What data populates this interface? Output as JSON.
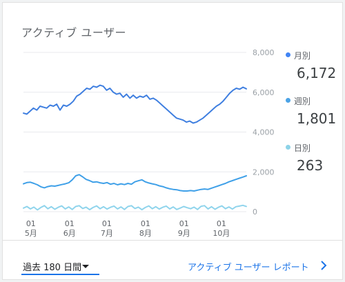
{
  "card": {
    "title": "アクティブ ユーザー"
  },
  "legend": [
    {
      "label": "月別",
      "value": "6,172",
      "color": "#4285f4"
    },
    {
      "label": "週別",
      "value": "1,801",
      "color": "#4ba3e6"
    },
    {
      "label": "日別",
      "value": "263",
      "color": "#8dd3e8"
    }
  ],
  "footer": {
    "range_label": "過去 180 日間",
    "report_link": "アクティブ ユーザー レポート"
  },
  "colors": {
    "monthly": "#3f7fe0",
    "weekly": "#3fa0e8",
    "daily": "#8fd4ec",
    "grid": "#e8eaed",
    "accent": "#1a73e8"
  },
  "chart_data": {
    "type": "line",
    "y_axis_position": "right",
    "ylim": [
      0,
      8000
    ],
    "y_ticks": [
      0,
      2000,
      4000,
      6000,
      8000
    ],
    "y_tick_labels": [
      "0",
      "2,000",
      "4,000",
      "6,000",
      "8,000"
    ],
    "x_tick_labels": [
      [
        "01",
        "5月"
      ],
      [
        "01",
        "6月"
      ],
      [
        "01",
        "7月"
      ],
      [
        "01",
        "8月"
      ],
      [
        "01",
        "9月"
      ],
      [
        "01",
        "10月"
      ]
    ],
    "x_tick_days": [
      6,
      37,
      67,
      98,
      129,
      159
    ],
    "num_days": 180,
    "series": [
      {
        "name": "月別",
        "values": [
          4950,
          4900,
          5050,
          5200,
          5100,
          5300,
          5250,
          5200,
          5350,
          5300,
          5400,
          5100,
          5350,
          5300,
          5400,
          5550,
          5800,
          5900,
          6050,
          6200,
          6150,
          6300,
          6250,
          6350,
          6300,
          6100,
          6200,
          6000,
          5900,
          5950,
          5750,
          5900,
          5700,
          5850,
          5700,
          5800,
          5750,
          5850,
          5650,
          5700,
          5600,
          5450,
          5300,
          5150,
          5000,
          4850,
          4700,
          4650,
          4600,
          4500,
          4550,
          4450,
          4500,
          4600,
          4700,
          4850,
          5000,
          5150,
          5300,
          5400,
          5550,
          5750,
          5950,
          6100,
          6200,
          6150,
          6250,
          6172
        ]
      },
      {
        "name": "週別",
        "values": [
          1400,
          1460,
          1480,
          1420,
          1350,
          1250,
          1200,
          1260,
          1300,
          1280,
          1320,
          1360,
          1400,
          1450,
          1600,
          1800,
          1860,
          1750,
          1620,
          1560,
          1480,
          1500,
          1450,
          1420,
          1460,
          1380,
          1420,
          1350,
          1400,
          1360,
          1420,
          1380,
          1500,
          1550,
          1600,
          1500,
          1440,
          1400,
          1360,
          1300,
          1260,
          1200,
          1150,
          1120,
          1100,
          1060,
          1040,
          1040,
          1060,
          1040,
          1080,
          1120,
          1140,
          1120,
          1180,
          1240,
          1300,
          1360,
          1420,
          1500,
          1560,
          1620,
          1680,
          1740,
          1801
        ]
      },
      {
        "name": "日別",
        "values": [
          180,
          260,
          140,
          230,
          90,
          210,
          300,
          150,
          250,
          120,
          220,
          290,
          140,
          240,
          110,
          260,
          300,
          160,
          230,
          100,
          210,
          290,
          150,
          250,
          130,
          220,
          280,
          140,
          240,
          110,
          260,
          300,
          160,
          230,
          100,
          210,
          290,
          150,
          250,
          130,
          220,
          280,
          140,
          240,
          110,
          180,
          260,
          200,
          150,
          230,
          110,
          270,
          300,
          140,
          250,
          120,
          220,
          290,
          150,
          240,
          130,
          250,
          280,
          320,
          263
        ]
      }
    ]
  }
}
